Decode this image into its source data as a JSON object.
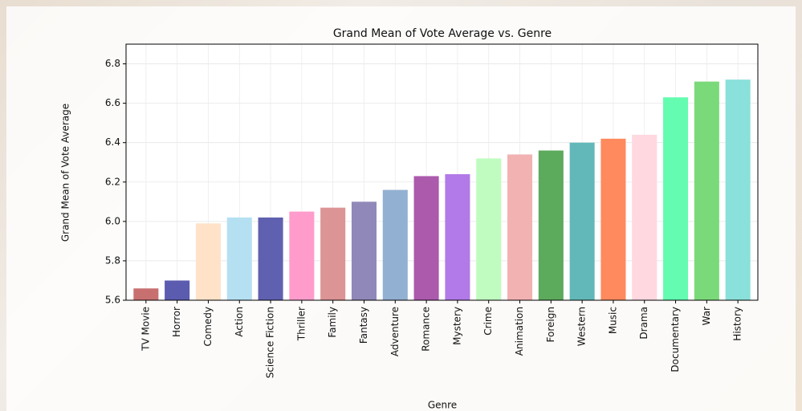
{
  "chart_data": {
    "type": "bar",
    "title": "Grand Mean of Vote Average vs. Genre",
    "xlabel": "Genre",
    "ylabel": "Grand Mean of Vote Average",
    "categories": [
      "TV Movie",
      "Horror",
      "Comedy",
      "Action",
      "Science Fiction",
      "Thriller",
      "Family",
      "Fantasy",
      "Adventure",
      "Romance",
      "Mystery",
      "Crime",
      "Animation",
      "Foreign",
      "Western",
      "Music",
      "Drama",
      "Documentary",
      "War",
      "History"
    ],
    "values": [
      5.66,
      5.7,
      5.99,
      6.02,
      6.02,
      6.05,
      6.07,
      6.1,
      6.16,
      6.23,
      6.24,
      6.32,
      6.34,
      6.36,
      6.4,
      6.42,
      6.44,
      6.63,
      6.71,
      6.72
    ],
    "colors": [
      "#c87070",
      "#5b5bb0",
      "#ffe2c8",
      "#b5e0f2",
      "#6060b0",
      "#ff9ccc",
      "#dc9494",
      "#9088b8",
      "#92b0d2",
      "#ac5aac",
      "#b27ae8",
      "#c0fcc0",
      "#f2b2b2",
      "#5caa5c",
      "#62b8b8",
      "#ff8a5e",
      "#ffd8e0",
      "#64fcb0",
      "#7ada7a",
      "#8ae0da"
    ],
    "ylim": [
      5.6,
      6.9
    ],
    "yticks": [
      5.6,
      5.8,
      {
        "value": 6,
        "label": "6.0"
      },
      6.2,
      6.4,
      6.6,
      6.8
    ],
    "grid": true
  }
}
